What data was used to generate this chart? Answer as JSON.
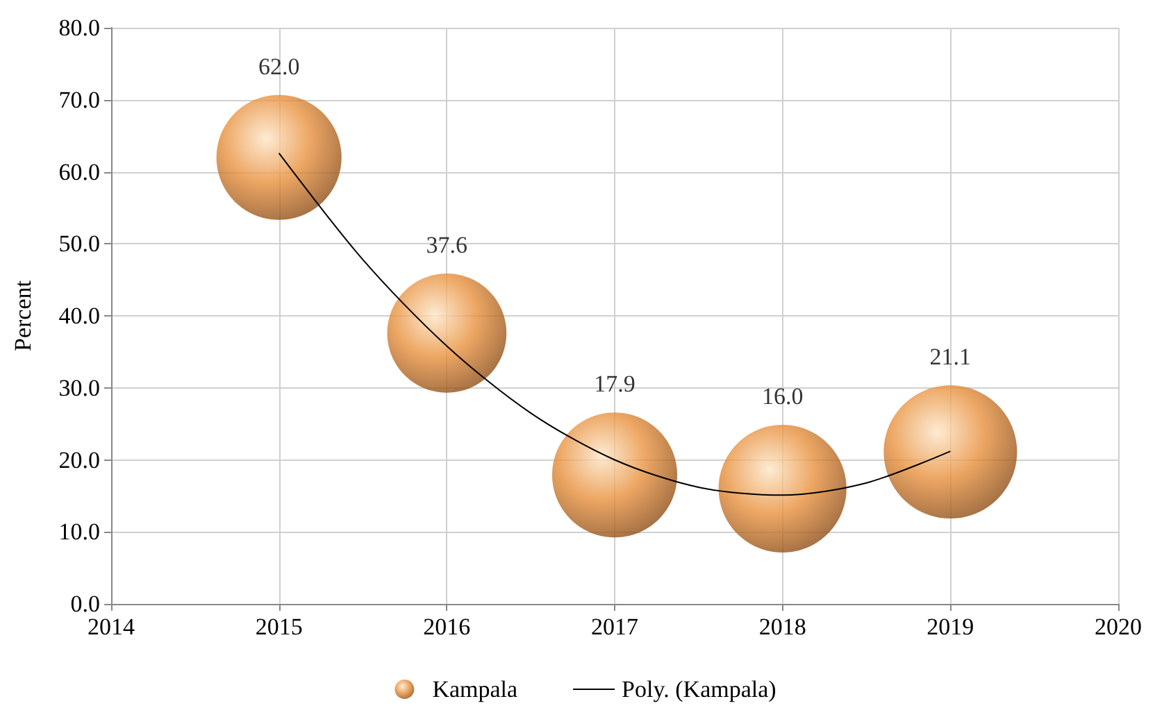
{
  "chart_data": {
    "type": "bubble",
    "ylabel": "Percent",
    "x": [
      2015,
      2016,
      2017,
      2018,
      2019
    ],
    "series": [
      {
        "name": "Kampala",
        "color": "#e8903c",
        "values": [
          62.0,
          37.6,
          17.9,
          16.0,
          21.1
        ],
        "sizes": [
          0.88,
          0.8,
          0.88,
          0.92,
          1
        ],
        "value_labels": [
          "62.0",
          "37.6",
          "17.9",
          "16.0",
          "21.1"
        ]
      },
      {
        "name": "Poly. (Kampala)",
        "type": "line",
        "color": "#000000",
        "x": [
          2015,
          2015.5,
          2016,
          2016.5,
          2017,
          2017.5,
          2018,
          2018.5,
          2019
        ],
        "values": [
          62.6,
          47.8,
          35.8,
          26.5,
          20.0,
          16.2,
          15.1,
          16.8,
          21.2
        ],
        "marker": "none",
        "line_style": "solid"
      }
    ],
    "xlim": [
      2014,
      2020
    ],
    "xticks": [
      2014,
      2015,
      2016,
      2017,
      2018,
      2019,
      2020
    ],
    "ylim": [
      0,
      80
    ],
    "yticks": [
      {
        "value": 0,
        "label": "0.0"
      },
      {
        "value": 10,
        "label": "10.0"
      },
      {
        "value": 20,
        "label": "20.0"
      },
      {
        "value": 30,
        "label": "30.0"
      },
      {
        "value": 40,
        "label": "40.0"
      },
      {
        "value": 50,
        "label": "50.0"
      },
      {
        "value": 60,
        "label": "60.0"
      },
      {
        "value": 70,
        "label": "70.0"
      },
      {
        "value": 80,
        "label": "80.0"
      }
    ],
    "grid": true,
    "legend": "bottom"
  }
}
